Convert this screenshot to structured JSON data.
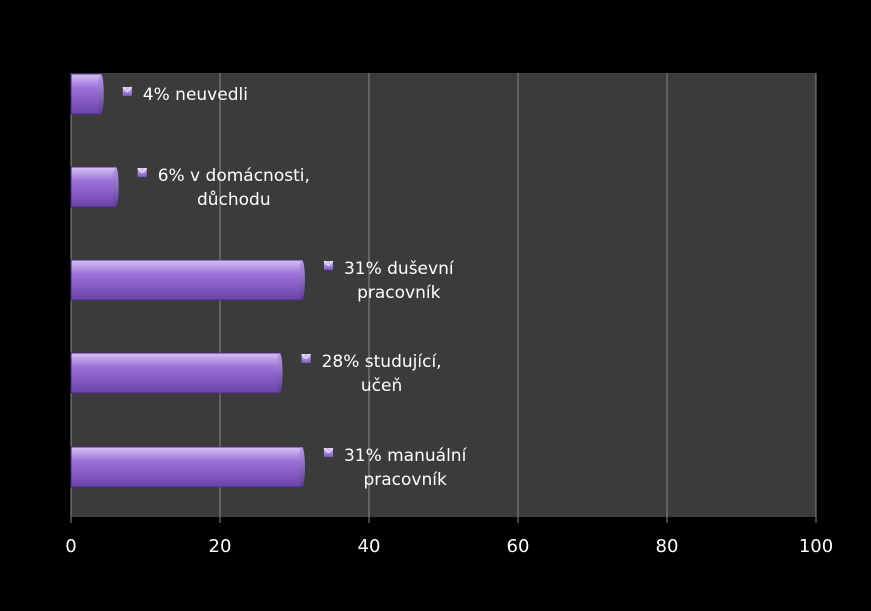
{
  "chart_data": {
    "type": "bar",
    "orientation": "horizontal",
    "categories": [
      "neuvedli",
      "v domácnosti, důchodu",
      "duševní pracovník",
      "studující, učeň",
      "manuální pracovník"
    ],
    "values": [
      4,
      6,
      31,
      28,
      31
    ],
    "data_labels": [
      [
        "4% neuvedli"
      ],
      [
        "6% v domácnosti,",
        "důchodu"
      ],
      [
        "31% duševní",
        "pracovník"
      ],
      [
        "28% studující,",
        "učeň"
      ],
      [
        "31% manuální",
        "pracovník"
      ]
    ],
    "x_ticks": [
      "0",
      "20",
      "40",
      "60",
      "80",
      "100"
    ],
    "xlim": [
      0,
      100
    ],
    "grid": true,
    "title": "",
    "xlabel": "",
    "ylabel": ""
  },
  "colors": {
    "page_background": "#000000",
    "plot_background": "#3b3b3b",
    "grid": "#8a8a8a",
    "bar_top": "#d6c3f5",
    "bar_mid": "#9b72d9",
    "bar_bottom": "#6a43a8",
    "text": "#ffffff"
  }
}
